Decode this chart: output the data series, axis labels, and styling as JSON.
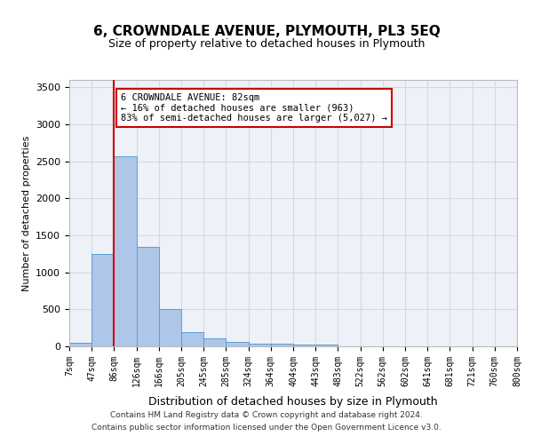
{
  "title": "6, CROWNDALE AVENUE, PLYMOUTH, PL3 5EQ",
  "subtitle": "Size of property relative to detached houses in Plymouth",
  "xlabel": "Distribution of detached houses by size in Plymouth",
  "ylabel": "Number of detached properties",
  "bin_labels": [
    "7sqm",
    "47sqm",
    "86sqm",
    "126sqm",
    "166sqm",
    "205sqm",
    "245sqm",
    "285sqm",
    "324sqm",
    "364sqm",
    "404sqm",
    "443sqm",
    "483sqm",
    "522sqm",
    "562sqm",
    "602sqm",
    "641sqm",
    "681sqm",
    "721sqm",
    "760sqm",
    "800sqm"
  ],
  "bar_values": [
    50,
    1250,
    2570,
    1340,
    500,
    195,
    105,
    55,
    40,
    35,
    25,
    30,
    5,
    0,
    0,
    0,
    0,
    0,
    0,
    0
  ],
  "bar_color": "#aec6e8",
  "bar_edge_color": "#5a9fd4",
  "grid_color": "#d0d8e8",
  "background_color": "#eef2f8",
  "vline_color": "#cc0000",
  "annotation_text": "6 CROWNDALE AVENUE: 82sqm\n← 16% of detached houses are smaller (963)\n83% of semi-detached houses are larger (5,027) →",
  "annotation_box_color": "#ffffff",
  "annotation_box_edge": "#cc0000",
  "ylim": [
    0,
    3600
  ],
  "yticks": [
    0,
    500,
    1000,
    1500,
    2000,
    2500,
    3000,
    3500
  ],
  "footer_line1": "Contains HM Land Registry data © Crown copyright and database right 2024.",
  "footer_line2": "Contains public sector information licensed under the Open Government Licence v3.0."
}
